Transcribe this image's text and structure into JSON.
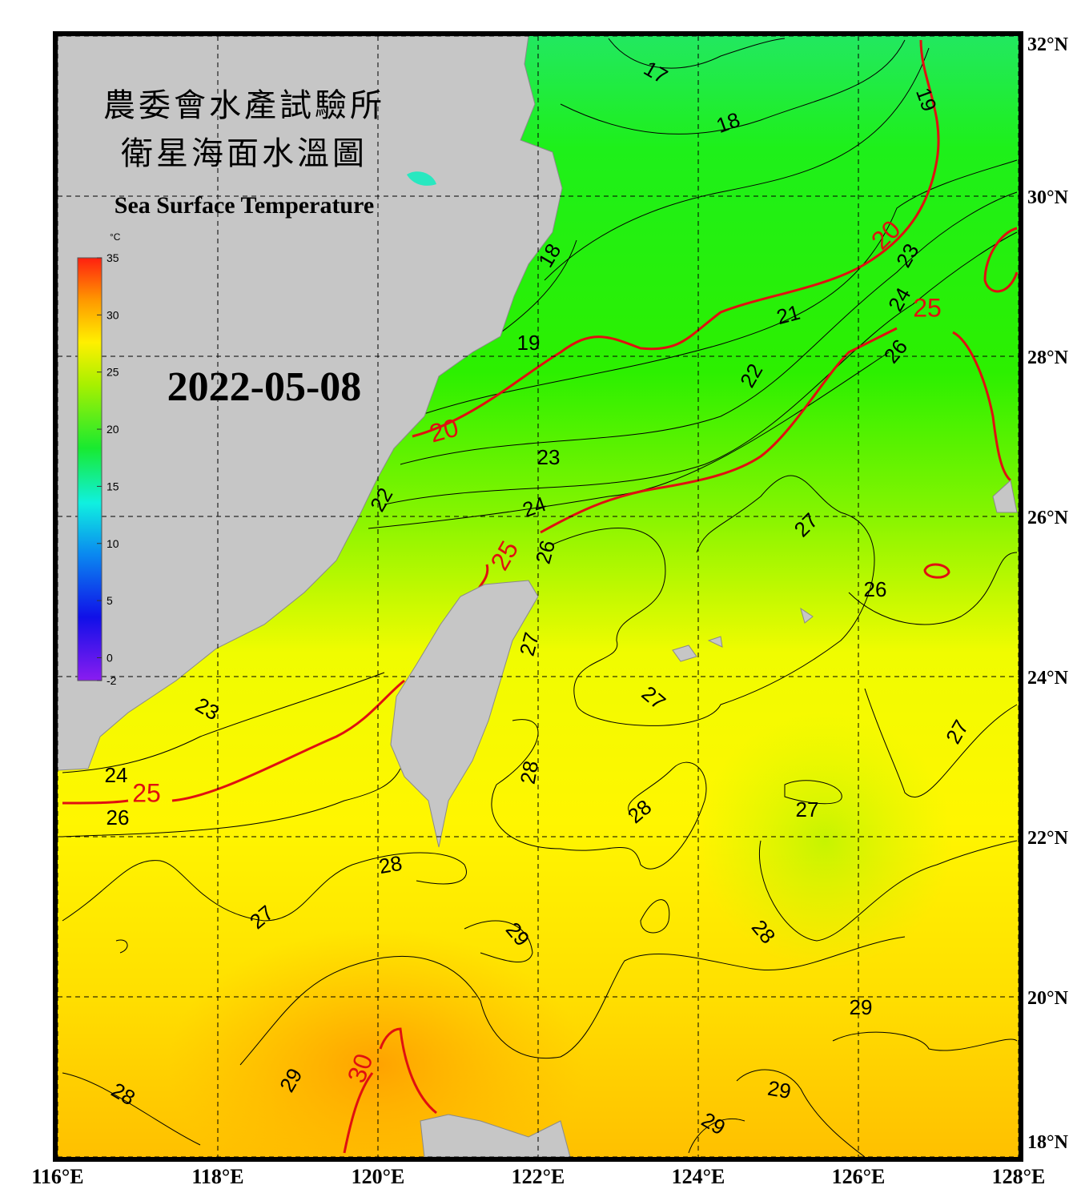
{
  "header": {
    "title_zh": "農委會水產試驗所",
    "subtitle_zh": "衛星海面水溫圖",
    "title_en": "Sea Surface Temperature",
    "date": "2022-05-08"
  },
  "colorbar": {
    "unit": "°C",
    "ticks": [
      35,
      30,
      25,
      20,
      15,
      10,
      5,
      0,
      -2
    ],
    "lim": [
      -2,
      35
    ]
  },
  "map": {
    "xlim": [
      116,
      128
    ],
    "ylim": [
      18,
      32
    ],
    "xticks": [
      {
        "value": 116,
        "label": "116°E"
      },
      {
        "value": 118,
        "label": "118°E"
      },
      {
        "value": 120,
        "label": "120°E"
      },
      {
        "value": 122,
        "label": "122°E"
      },
      {
        "value": 124,
        "label": "124°E"
      },
      {
        "value": 126,
        "label": "126°E"
      },
      {
        "value": 128,
        "label": "128°E"
      }
    ],
    "yticks": [
      {
        "value": 32,
        "label": "32°N"
      },
      {
        "value": 30,
        "label": "30°N"
      },
      {
        "value": 28,
        "label": "28°N"
      },
      {
        "value": 26,
        "label": "26°N"
      },
      {
        "value": 24,
        "label": "24°N"
      },
      {
        "value": 22,
        "label": "22°N"
      },
      {
        "value": 20,
        "label": "20°N"
      },
      {
        "value": 18,
        "label": "18°N"
      }
    ],
    "isotherm_labels": [
      {
        "text": "17",
        "color": "#000000"
      },
      {
        "text": "18",
        "color": "#000000"
      },
      {
        "text": "19",
        "color": "#000000"
      },
      {
        "text": "18",
        "color": "#000000"
      },
      {
        "text": "19",
        "color": "#000000"
      },
      {
        "text": "20",
        "color": "#e01010"
      },
      {
        "text": "20",
        "color": "#e01010"
      },
      {
        "text": "21",
        "color": "#000000"
      },
      {
        "text": "22",
        "color": "#000000"
      },
      {
        "text": "23",
        "color": "#000000"
      },
      {
        "text": "24",
        "color": "#000000"
      },
      {
        "text": "25",
        "color": "#e01010"
      },
      {
        "text": "26",
        "color": "#000000"
      },
      {
        "text": "23",
        "color": "#000000"
      },
      {
        "text": "24",
        "color": "#000000"
      },
      {
        "text": "22",
        "color": "#000000"
      },
      {
        "text": "25",
        "color": "#e01010"
      },
      {
        "text": "26",
        "color": "#000000"
      },
      {
        "text": "27",
        "color": "#000000"
      },
      {
        "text": "26",
        "color": "#000000"
      },
      {
        "text": "27",
        "color": "#000000"
      },
      {
        "text": "27",
        "color": "#000000"
      },
      {
        "text": "23",
        "color": "#000000"
      },
      {
        "text": "28",
        "color": "#000000"
      },
      {
        "text": "28",
        "color": "#000000"
      },
      {
        "text": "27",
        "color": "#000000"
      },
      {
        "text": "27",
        "color": "#000000"
      },
      {
        "text": "24",
        "color": "#000000"
      },
      {
        "text": "25",
        "color": "#e01010"
      },
      {
        "text": "26",
        "color": "#000000"
      },
      {
        "text": "28",
        "color": "#000000"
      },
      {
        "text": "27",
        "color": "#000000"
      },
      {
        "text": "29",
        "color": "#000000"
      },
      {
        "text": "28",
        "color": "#000000"
      },
      {
        "text": "29",
        "color": "#000000"
      },
      {
        "text": "29",
        "color": "#000000"
      },
      {
        "text": "30",
        "color": "#e01010"
      },
      {
        "text": "28",
        "color": "#000000"
      },
      {
        "text": "29",
        "color": "#000000"
      },
      {
        "text": "29",
        "color": "#000000"
      }
    ]
  }
}
